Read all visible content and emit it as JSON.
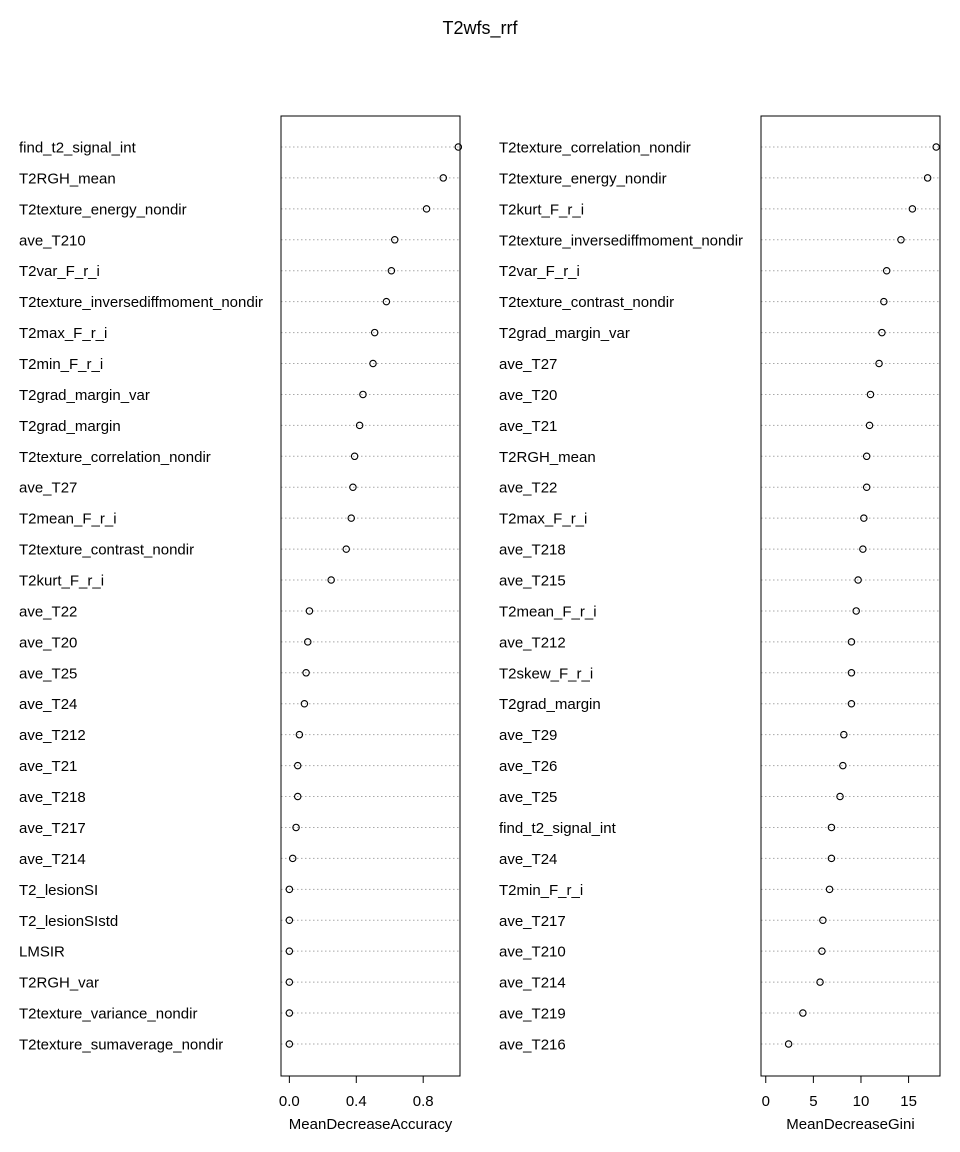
{
  "title": "T2wfs_rrf",
  "chart_data": [
    {
      "type": "scatter",
      "style": "dotchart",
      "xlabel": "MeanDecreaseAccuracy",
      "ylabel": "",
      "xlim": [
        -0.05,
        1.02
      ],
      "xticks": [
        "0.0",
        "0.4",
        "0.8"
      ],
      "xtick_values": [
        0,
        0.4,
        0.8
      ],
      "grid": "dotted horizontal per row",
      "categories": [
        "find_t2_signal_int",
        "T2RGH_mean",
        "T2texture_energy_nondir",
        "ave_T210",
        "T2var_F_r_i",
        "T2texture_inversediffmoment_nondir",
        "T2max_F_r_i",
        "T2min_F_r_i",
        "T2grad_margin_var",
        "T2grad_margin",
        "T2texture_correlation_nondir",
        "ave_T27",
        "T2mean_F_r_i",
        "T2texture_contrast_nondir",
        "T2kurt_F_r_i",
        "ave_T22",
        "ave_T20",
        "ave_T25",
        "ave_T24",
        "ave_T212",
        "ave_T21",
        "ave_T218",
        "ave_T217",
        "ave_T214",
        "T2_lesionSI",
        "T2_lesionSIstd",
        "LMSIR",
        "T2RGH_var",
        "T2texture_variance_nondir",
        "T2texture_sumaverage_nondir"
      ],
      "values": [
        1.01,
        0.92,
        0.82,
        0.63,
        0.61,
        0.58,
        0.51,
        0.5,
        0.44,
        0.42,
        0.39,
        0.38,
        0.37,
        0.34,
        0.25,
        0.12,
        0.11,
        0.1,
        0.09,
        0.06,
        0.05,
        0.05,
        0.04,
        0.02,
        0.0,
        0.0,
        0.0,
        0.0,
        0.0,
        0.0
      ]
    },
    {
      "type": "scatter",
      "style": "dotchart",
      "xlabel": "MeanDecreaseGini",
      "ylabel": "",
      "xlim": [
        -0.5,
        18.3
      ],
      "xticks": [
        "0",
        "5",
        "10",
        "15"
      ],
      "xtick_values": [
        0,
        5,
        10,
        15
      ],
      "grid": "dotted horizontal per row",
      "categories": [
        "T2texture_correlation_nondir",
        "T2texture_energy_nondir",
        "T2kurt_F_r_i",
        "T2texture_inversediffmoment_nondir",
        "T2var_F_r_i",
        "T2texture_contrast_nondir",
        "T2grad_margin_var",
        "ave_T27",
        "ave_T20",
        "ave_T21",
        "T2RGH_mean",
        "ave_T22",
        "T2max_F_r_i",
        "ave_T218",
        "ave_T215",
        "T2mean_F_r_i",
        "ave_T212",
        "T2skew_F_r_i",
        "T2grad_margin",
        "ave_T29",
        "ave_T26",
        "ave_T25",
        "find_t2_signal_int",
        "ave_T24",
        "T2min_F_r_i",
        "ave_T217",
        "ave_T210",
        "ave_T214",
        "ave_T219",
        "ave_T216"
      ],
      "values": [
        17.9,
        17.0,
        15.4,
        14.2,
        12.7,
        12.4,
        12.2,
        11.9,
        11.0,
        10.9,
        10.6,
        10.6,
        10.3,
        10.2,
        9.7,
        9.5,
        9.0,
        9.0,
        9.0,
        8.2,
        8.1,
        7.8,
        6.9,
        6.9,
        6.7,
        6.0,
        5.9,
        5.7,
        3.9,
        2.4
      ]
    }
  ]
}
